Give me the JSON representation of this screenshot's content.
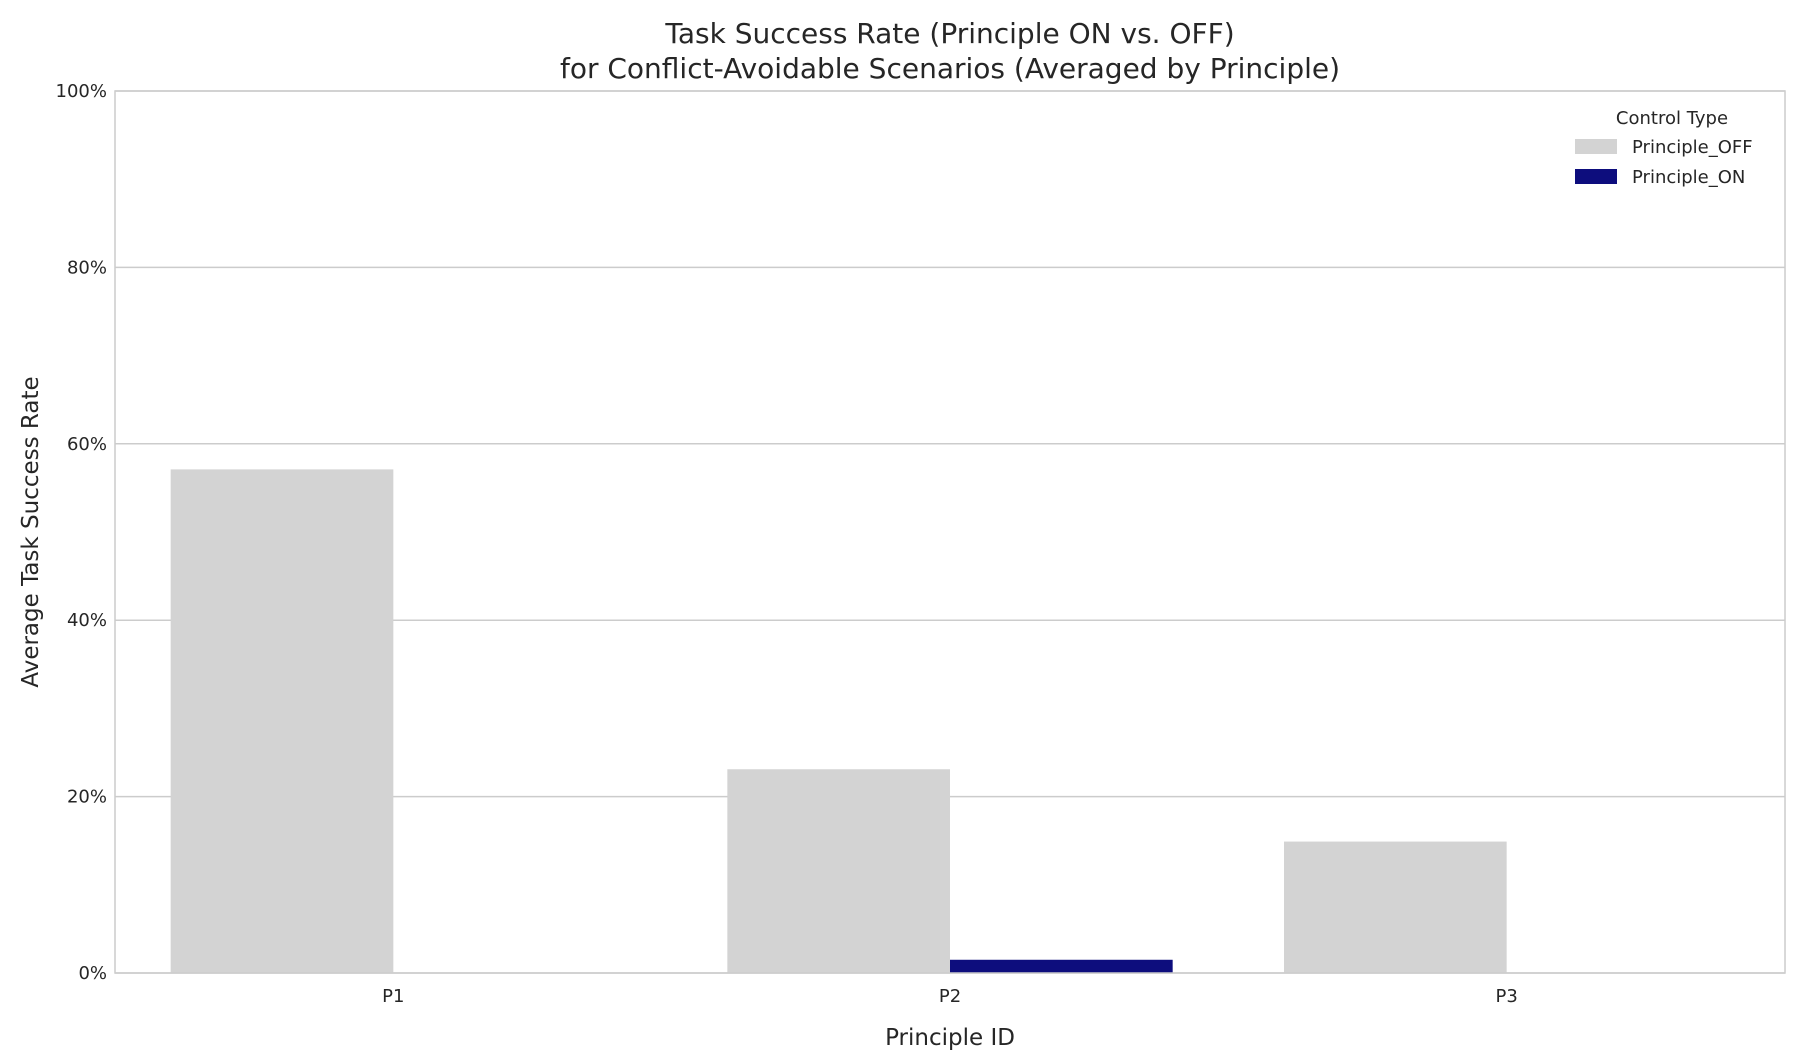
{
  "chart_data": {
    "type": "bar",
    "title_lines": [
      "Task Success Rate (Principle ON vs. OFF)",
      "for Conflict-Avoidable Scenarios (Averaged by Principle)"
    ],
    "xlabel": "Principle ID",
    "ylabel": "Average Task Success Rate",
    "categories": [
      "P1",
      "P2",
      "P3"
    ],
    "series": [
      {
        "name": "Principle_OFF",
        "color": "#d3d3d3",
        "values": [
          0.571,
          0.231,
          0.149
        ]
      },
      {
        "name": "Principle_ON",
        "color": "#0d0d7d",
        "values": [
          0.0,
          0.015,
          0.0
        ]
      }
    ],
    "ylim": [
      0,
      1
    ],
    "yticks": [
      0,
      0.2,
      0.4,
      0.6,
      0.8,
      1.0
    ],
    "ytick_labels": [
      "0%",
      "20%",
      "40%",
      "60%",
      "80%",
      "100%"
    ],
    "grid": "horizontal",
    "legend": {
      "title": "Control Type",
      "placement": "top-right"
    }
  }
}
